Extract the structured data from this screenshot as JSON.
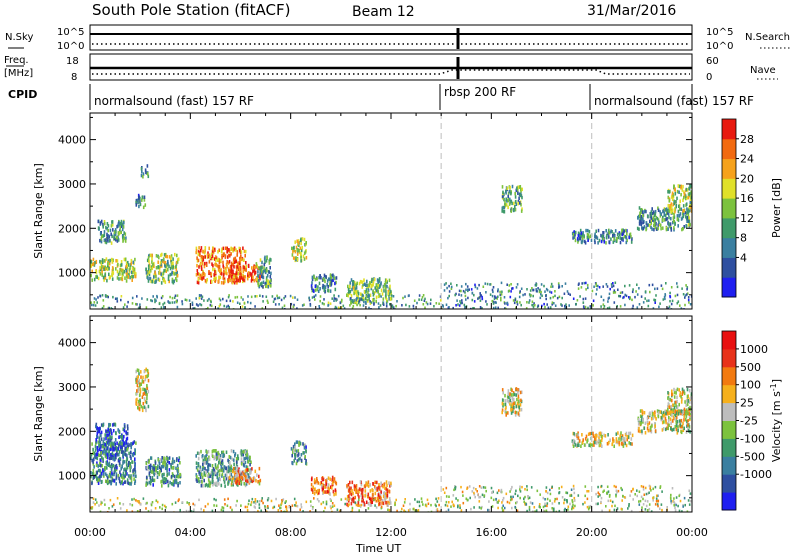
{
  "header": {
    "station": "South Pole Station (fitACF)",
    "beam": "Beam 12",
    "date": "31/Mar/2016"
  },
  "status_strips": {
    "nsky_label": "N.Sky",
    "nsky_ticks": [
      "10^5",
      "10^0"
    ],
    "nsearch_label": "N.Search",
    "nsearch_ticks": [
      "10^5",
      "10^0"
    ],
    "freq_label": "Freq.",
    "freq_unit": "[MHz]",
    "freq_ticks": [
      "18",
      "8"
    ],
    "nave_label": "Nave",
    "nave_ticks": [
      "60",
      "0"
    ],
    "cpid_label": "CPID",
    "cpid_segments": [
      {
        "label": "normalsound (fast) 157 RF",
        "start_hour": 0,
        "end_hour": 14
      },
      {
        "label": "rbsp 200 RF",
        "start_hour": 14,
        "end_hour": 20
      },
      {
        "label": "normalsound (fast) 157 RF",
        "start_hour": 20,
        "end_hour": 24
      }
    ]
  },
  "chart_data": [
    {
      "type": "heatmap",
      "panel": "power",
      "ylabel": "Slant Range [km]",
      "xlabel": "Time UT",
      "xlim": [
        0,
        24
      ],
      "ylim": [
        180,
        4600
      ],
      "xticks": [
        "00:00",
        "04:00",
        "08:00",
        "12:00",
        "16:00",
        "20:00",
        "00:00"
      ],
      "yticks": [
        1000,
        2000,
        3000,
        4000
      ],
      "colorbar_label": "Power [dB]",
      "colorbar_ticks": [
        "28",
        "24",
        "20",
        "16",
        "12",
        "8",
        "4"
      ],
      "colorbar_colors": [
        "#1f1ff0",
        "#2e4fa0",
        "#3a7fa0",
        "#3f9a6a",
        "#7cc23e",
        "#e0e02a",
        "#f6a21c",
        "#f26a10",
        "#e81a10"
      ],
      "vlines_hours": [
        14,
        20
      ],
      "echo_regions": [
        {
          "t": [
            0.0,
            1.8
          ],
          "r": [
            850,
            1350
          ],
          "level": 0.55
        },
        {
          "t": [
            0.3,
            1.4
          ],
          "r": [
            1700,
            2200
          ],
          "level": 0.35
        },
        {
          "t": [
            1.8,
            2.2
          ],
          "r": [
            2500,
            2800
          ],
          "level": 0.3
        },
        {
          "t": [
            2.0,
            2.3
          ],
          "r": [
            3200,
            3450
          ],
          "level": 0.35
        },
        {
          "t": [
            2.2,
            3.5
          ],
          "r": [
            800,
            1450
          ],
          "level": 0.5
        },
        {
          "t": [
            4.2,
            6.2
          ],
          "r": [
            800,
            1600
          ],
          "level": 0.8
        },
        {
          "t": [
            5.5,
            6.8
          ],
          "r": [
            850,
            1200
          ],
          "level": 0.9
        },
        {
          "t": [
            6.6,
            7.2
          ],
          "r": [
            700,
            1400
          ],
          "level": 0.4
        },
        {
          "t": [
            8.0,
            8.6
          ],
          "r": [
            1300,
            1800
          ],
          "level": 0.55
        },
        {
          "t": [
            8.8,
            9.8
          ],
          "r": [
            600,
            1000
          ],
          "level": 0.3
        },
        {
          "t": [
            10.2,
            12.0
          ],
          "r": [
            350,
            900
          ],
          "level": 0.45
        },
        {
          "t": [
            0.0,
            14.0
          ],
          "r": [
            180,
            520
          ],
          "level": 0.35
        },
        {
          "t": [
            16.4,
            17.2
          ],
          "r": [
            2400,
            3000
          ],
          "level": 0.4
        },
        {
          "t": [
            19.2,
            21.6
          ],
          "r": [
            1700,
            2000
          ],
          "level": 0.3
        },
        {
          "t": [
            21.8,
            23.9
          ],
          "r": [
            2000,
            2500
          ],
          "level": 0.35
        },
        {
          "t": [
            23.0,
            24.0
          ],
          "r": [
            2400,
            3000
          ],
          "level": 0.55
        },
        {
          "t": [
            14.0,
            24.0
          ],
          "r": [
            180,
            800
          ],
          "level": 0.3
        }
      ]
    },
    {
      "type": "heatmap",
      "panel": "velocity",
      "ylabel": "Slant Range [km]",
      "xlabel": "Time UT",
      "xlim": [
        0,
        24
      ],
      "ylim": [
        180,
        4600
      ],
      "xticks": [
        "00:00",
        "04:00",
        "08:00",
        "12:00",
        "16:00",
        "20:00",
        "00:00"
      ],
      "yticks": [
        1000,
        2000,
        3000,
        4000
      ],
      "colorbar_label": "Velocity [m s",
      "colorbar_label_sup": "-1",
      "colorbar_label_end": "]",
      "colorbar_ticks": [
        "1000",
        "500",
        "100",
        "25",
        "-25",
        "-100",
        "-500",
        "-1000"
      ],
      "colorbar_colors": [
        "#1f1ff0",
        "#2e4fa0",
        "#3a7fa0",
        "#3f9a6a",
        "#7cc23e",
        "#bdbdbd",
        "#f6b01c",
        "#f27a10",
        "#e8321a",
        "#e81010"
      ],
      "vlines_hours": [
        14,
        20
      ],
      "echo_regions": [
        {
          "t": [
            0.0,
            1.8
          ],
          "r": [
            850,
            1800
          ],
          "level": 0.25
        },
        {
          "t": [
            0.2,
            1.5
          ],
          "r": [
            1500,
            2200
          ],
          "level": 0.2
        },
        {
          "t": [
            1.8,
            2.3
          ],
          "r": [
            2500,
            3450
          ],
          "level": 0.55
        },
        {
          "t": [
            2.2,
            3.6
          ],
          "r": [
            800,
            1450
          ],
          "level": 0.3
        },
        {
          "t": [
            4.2,
            6.4
          ],
          "r": [
            800,
            1600
          ],
          "level": 0.35
        },
        {
          "t": [
            5.5,
            6.8
          ],
          "r": [
            850,
            1200
          ],
          "level": 0.7
        },
        {
          "t": [
            8.0,
            8.6
          ],
          "r": [
            1300,
            1800
          ],
          "level": 0.3
        },
        {
          "t": [
            8.8,
            9.8
          ],
          "r": [
            600,
            1000
          ],
          "level": 0.75
        },
        {
          "t": [
            10.2,
            12.0
          ],
          "r": [
            350,
            900
          ],
          "level": 0.75
        },
        {
          "t": [
            0.0,
            14.0
          ],
          "r": [
            180,
            520
          ],
          "level": 0.55
        },
        {
          "t": [
            16.4,
            17.2
          ],
          "r": [
            2400,
            3000
          ],
          "level": 0.55
        },
        {
          "t": [
            19.2,
            21.6
          ],
          "r": [
            1700,
            2000
          ],
          "level": 0.55
        },
        {
          "t": [
            21.8,
            23.9
          ],
          "r": [
            2000,
            2500
          ],
          "level": 0.55
        },
        {
          "t": [
            23.0,
            24.0
          ],
          "r": [
            2400,
            3000
          ],
          "level": 0.55
        },
        {
          "t": [
            14.0,
            24.0
          ],
          "r": [
            180,
            800
          ],
          "level": 0.5
        }
      ]
    }
  ]
}
